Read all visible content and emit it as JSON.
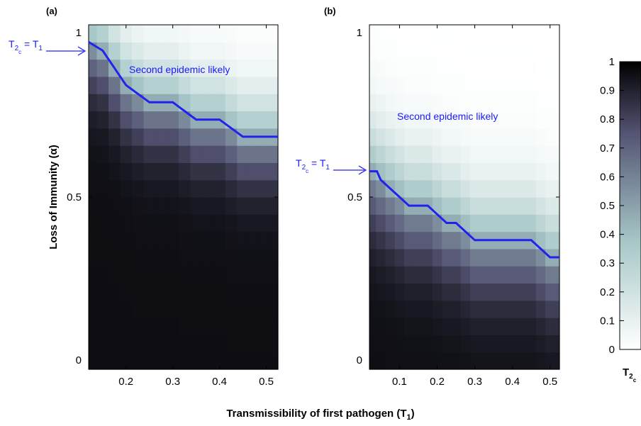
{
  "figure": {
    "xlabel_main": "Transmissibility of first pathogen (T",
    "xlabel_sub": "1",
    "xlabel_end": ")",
    "ylabel": "Loss of Immunity (α)"
  },
  "colorbar": {
    "label_main": "T",
    "label_sub1": "2",
    "label_sub2": "c",
    "range": [
      0,
      1
    ],
    "ticks": [
      "0",
      "0.1",
      "0.2",
      "0.3",
      "0.4",
      "0.5",
      "0.6",
      "0.7",
      "0.8",
      "0.9",
      "1"
    ],
    "colormap": "bone-reversed"
  },
  "chart_data": [
    {
      "type": "heatmap",
      "panel_label": "(a)",
      "xlim": [
        0.12,
        0.525
      ],
      "ylim": [
        0,
        1
      ],
      "x_ticks": [
        "0.2",
        "0.3",
        "0.4",
        "0.5"
      ],
      "y_ticks": [
        "0",
        "0.5",
        "1"
      ],
      "x_centers": [
        0.125,
        0.15,
        0.175,
        0.2,
        0.225,
        0.25,
        0.275,
        0.3,
        0.325,
        0.35,
        0.375,
        0.4,
        0.425,
        0.45,
        0.475,
        0.5,
        0.525
      ],
      "y_centers": [
        0.025,
        0.075,
        0.125,
        0.175,
        0.225,
        0.275,
        0.325,
        0.375,
        0.425,
        0.475,
        0.525,
        0.575,
        0.625,
        0.675,
        0.725,
        0.775,
        0.825,
        0.875,
        0.925,
        0.975
      ],
      "critical_line": {
        "name": "T2c = T1",
        "x": [
          0.12,
          0.15,
          0.175,
          0.2,
          0.225,
          0.25,
          0.275,
          0.3,
          0.325,
          0.35,
          0.375,
          0.4,
          0.425,
          0.45,
          0.475,
          0.5,
          0.525
        ],
        "y": [
          0.95,
          0.925,
          0.875,
          0.825,
          0.8,
          0.775,
          0.775,
          0.775,
          0.75,
          0.725,
          0.725,
          0.725,
          0.7,
          0.675,
          0.675,
          0.675,
          0.675
        ]
      },
      "annotation": "Second epidemic likely",
      "arrow_label_main": "T",
      "arrow_label_sub1": "2",
      "arrow_label_sub2": "c",
      "arrow_label_eq": " = T",
      "arrow_label_sub3": "1"
    },
    {
      "type": "heatmap",
      "panel_label": "(b)",
      "xlim": [
        0.02,
        0.525
      ],
      "ylim": [
        0,
        1
      ],
      "x_ticks": [
        "0.1",
        "0.2",
        "0.3",
        "0.4",
        "0.5"
      ],
      "y_ticks": [
        "0",
        "0.5",
        "1"
      ],
      "x_centers": [
        0.025,
        0.05,
        0.075,
        0.1,
        0.125,
        0.15,
        0.175,
        0.2,
        0.225,
        0.25,
        0.275,
        0.3,
        0.325,
        0.35,
        0.375,
        0.4,
        0.425,
        0.45,
        0.475,
        0.5,
        0.525
      ],
      "y_centers": [
        0.025,
        0.075,
        0.125,
        0.175,
        0.225,
        0.275,
        0.325,
        0.375,
        0.425,
        0.475,
        0.525,
        0.575,
        0.625,
        0.675,
        0.725,
        0.775,
        0.825,
        0.875,
        0.925,
        0.975
      ],
      "critical_line": {
        "name": "T2c = T1",
        "x": [
          0.02,
          0.04,
          0.05,
          0.075,
          0.1,
          0.125,
          0.15,
          0.175,
          0.2,
          0.225,
          0.25,
          0.275,
          0.3,
          0.325,
          0.35,
          0.375,
          0.4,
          0.425,
          0.45,
          0.475,
          0.5,
          0.525
        ],
        "y": [
          0.575,
          0.575,
          0.55,
          0.525,
          0.5,
          0.475,
          0.475,
          0.475,
          0.45,
          0.425,
          0.425,
          0.4,
          0.375,
          0.375,
          0.375,
          0.375,
          0.375,
          0.375,
          0.375,
          0.35,
          0.325,
          0.325
        ]
      },
      "annotation": "Second epidemic likely",
      "arrow_label_main": "T",
      "arrow_label_sub1": "2",
      "arrow_label_sub2": "c",
      "arrow_label_eq": " = T",
      "arrow_label_sub3": "1"
    }
  ]
}
